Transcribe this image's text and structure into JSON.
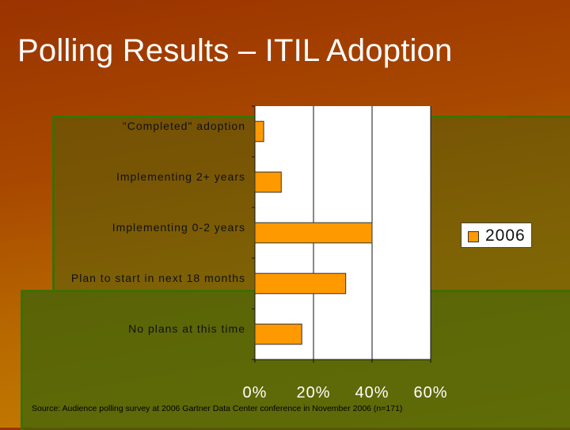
{
  "slide": {
    "title": "Polling Results – ITIL Adoption",
    "source": "Source: Audience polling survey at 2006 Gartner Data Center conference in November 2006 (n=171)"
  },
  "colors": {
    "bar": "#ff9900",
    "plot_bg": "#ffffff",
    "accent": "#3e6e00"
  },
  "chart_data": {
    "type": "bar",
    "orientation": "horizontal",
    "title": "",
    "categories": [
      "\"Completed\" adoption",
      "Implementing 2+ years",
      "Implementing 0-2 years",
      "Plan to start in next 18 months",
      "No plans at this time"
    ],
    "series": [
      {
        "name": "2006",
        "values": [
          3,
          9,
          40,
          31,
          16
        ]
      }
    ],
    "xlim": [
      0,
      60
    ],
    "xticks": [
      "0%",
      "20%",
      "40%",
      "60%"
    ],
    "xtick_values": [
      0,
      20,
      40,
      60
    ],
    "grid": true,
    "legend": {
      "position": "right",
      "entries": [
        "2006"
      ]
    }
  }
}
